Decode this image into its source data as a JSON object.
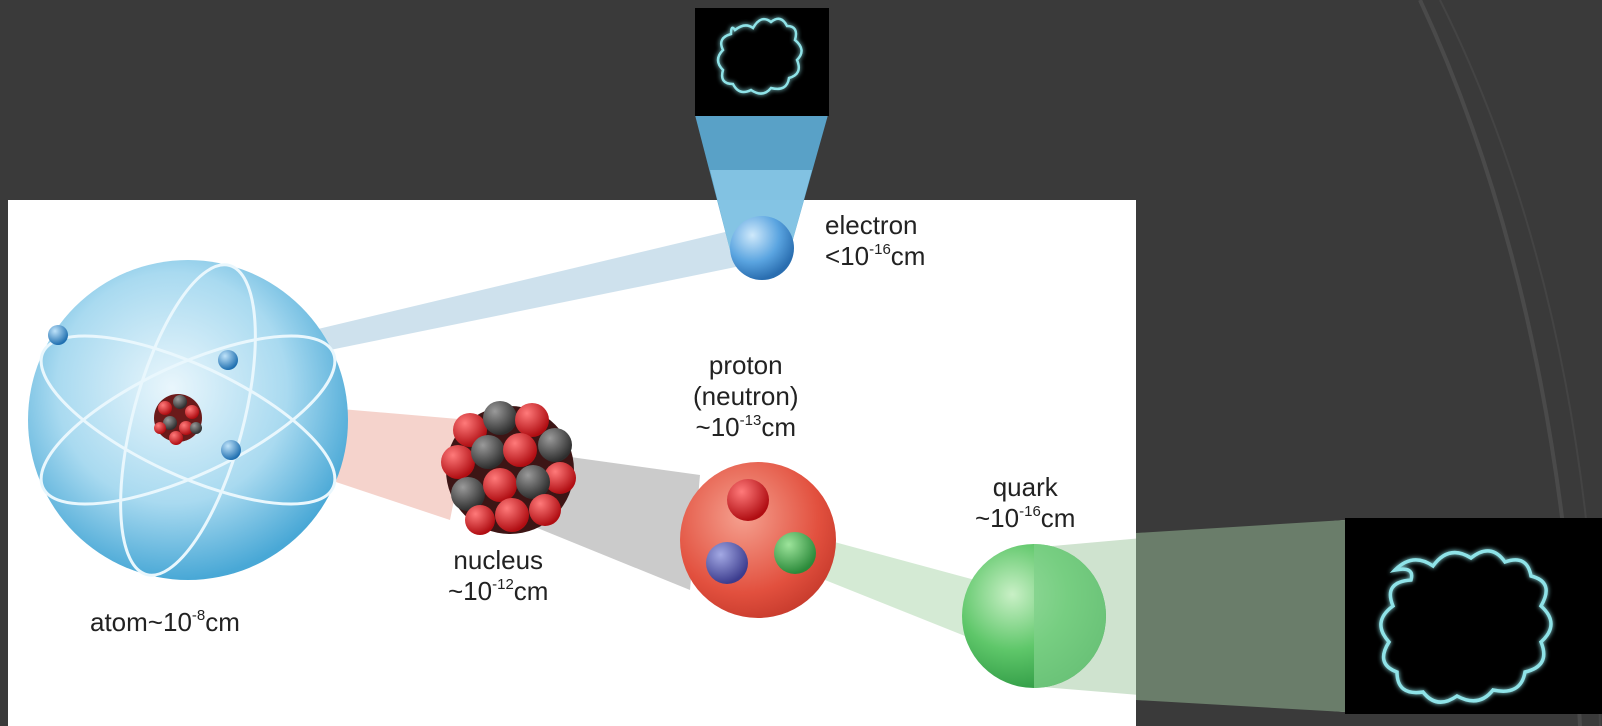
{
  "diagram": {
    "atom": {
      "name": "atom~10",
      "exp": "-8",
      "unit": "cm"
    },
    "nucleus": {
      "name": "nucleus",
      "prefix": "~10",
      "exp": "-12",
      "unit": "cm"
    },
    "electron": {
      "name": "electron",
      "prefix": "<10",
      "exp": "-16",
      "unit": "cm"
    },
    "proton": {
      "name": "proton",
      "alt": "(neutron)",
      "prefix": "~10",
      "exp": "-13",
      "unit": "cm"
    },
    "quark": {
      "name": "quark",
      "prefix": "~10",
      "exp": "-16",
      "unit": "cm"
    }
  },
  "colors": {
    "background": "#3a3a3a",
    "panel": "#ffffff",
    "atom_blue": "#5fb6dc",
    "proton_red": "#e0463a",
    "quark_green": "#4cb85e",
    "string_glow": "#8fe3e8"
  }
}
